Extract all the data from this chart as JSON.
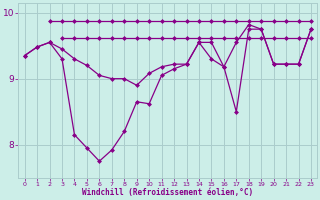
{
  "line1_x": [
    2,
    3,
    4,
    5,
    6,
    7,
    8,
    9,
    10,
    11,
    12,
    13,
    14,
    15,
    16,
    17,
    18,
    19,
    20,
    21,
    22,
    23
  ],
  "line1_y": [
    9.88,
    9.88,
    9.88,
    9.88,
    9.88,
    9.88,
    9.88,
    9.88,
    9.88,
    9.88,
    9.88,
    9.88,
    9.88,
    9.88,
    9.88,
    9.88,
    9.88,
    9.88,
    9.88,
    9.88,
    9.88,
    9.88
  ],
  "line2_x": [
    3,
    4,
    5,
    6,
    7,
    8,
    9,
    10,
    11,
    12,
    13,
    14,
    15,
    16,
    17,
    18,
    19,
    20,
    21,
    22,
    23
  ],
  "line2_y": [
    9.62,
    9.62,
    9.62,
    9.62,
    9.62,
    9.62,
    9.62,
    9.62,
    9.62,
    9.62,
    9.62,
    9.62,
    9.62,
    9.62,
    9.62,
    9.62,
    9.62,
    9.62,
    9.62,
    9.62,
    9.62
  ],
  "line3_x": [
    0,
    1,
    2,
    3,
    4,
    5,
    6,
    7,
    8,
    9,
    10,
    11,
    12,
    13,
    14,
    15,
    16,
    17,
    18,
    19,
    20,
    21,
    22,
    23
  ],
  "line3_y": [
    9.35,
    9.48,
    9.55,
    9.45,
    9.3,
    9.2,
    9.05,
    9.0,
    9.0,
    8.9,
    9.08,
    9.18,
    9.22,
    9.22,
    9.55,
    9.3,
    9.18,
    9.55,
    9.82,
    9.75,
    9.22,
    9.22,
    9.22,
    9.75
  ],
  "line4_x": [
    0,
    1,
    2,
    3,
    4,
    5,
    6,
    7,
    8,
    9,
    10,
    11,
    12,
    13,
    14,
    15,
    16,
    17,
    18,
    19,
    20,
    21,
    22,
    23
  ],
  "line4_y": [
    9.35,
    9.48,
    9.55,
    9.3,
    8.15,
    7.95,
    7.75,
    7.92,
    8.2,
    8.65,
    8.62,
    9.05,
    9.15,
    9.22,
    9.55,
    9.55,
    9.18,
    8.5,
    9.75,
    9.75,
    9.22,
    9.22,
    9.22,
    9.75
  ],
  "line_color": "#880088",
  "bg_color": "#cceee8",
  "grid_color": "#aacccc",
  "xlabel": "Windchill (Refroidissement éolien,°C)",
  "ylim": [
    7.5,
    10.15
  ],
  "xlim": [
    -0.5,
    23.5
  ],
  "yticks": [
    8,
    9,
    10
  ],
  "xticks": [
    0,
    1,
    2,
    3,
    4,
    5,
    6,
    7,
    8,
    9,
    10,
    11,
    12,
    13,
    14,
    15,
    16,
    17,
    18,
    19,
    20,
    21,
    22,
    23
  ]
}
